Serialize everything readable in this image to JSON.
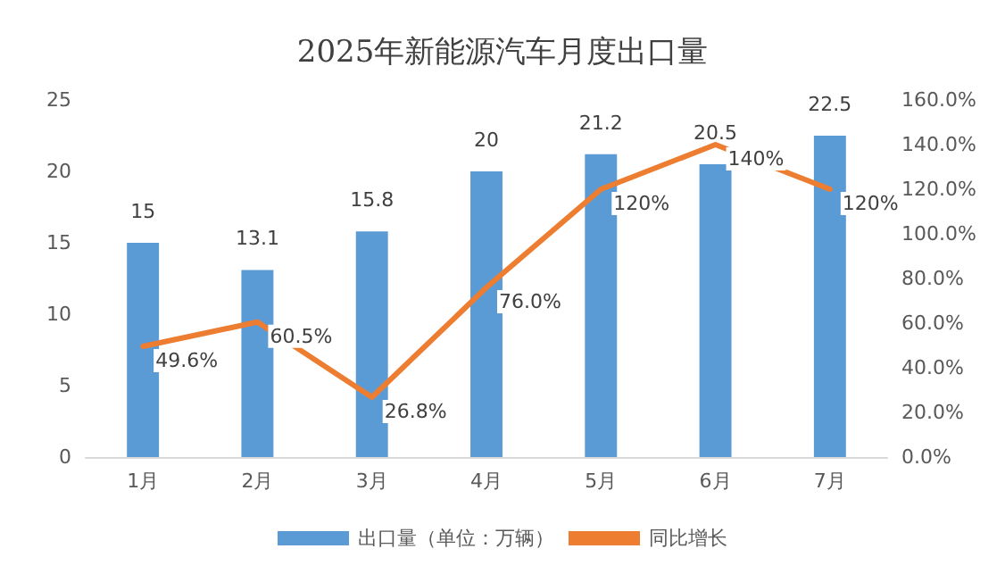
{
  "chart_data": {
    "type": "bar",
    "title": "2025年新能源汽车月度出口量",
    "categories": [
      "1月",
      "2月",
      "3月",
      "4月",
      "5月",
      "6月",
      "7月"
    ],
    "series": [
      {
        "name": "出口量（单位：万辆）",
        "color": "#5b9bd5",
        "values": [
          15,
          13.1,
          15.8,
          20,
          21.2,
          20.5,
          22.5
        ],
        "value_labels": [
          "15",
          "13.1",
          "15.8",
          "20",
          "21.2",
          "20.5",
          "22.5"
        ]
      },
      {
        "name": "同比增长",
        "type": "line",
        "axis": "y2",
        "color": "#ed7d31",
        "values": [
          49.6,
          60.5,
          26.8,
          76.0,
          120,
          140,
          120
        ],
        "value_labels": [
          "49.6%",
          "60.5%",
          "26.8%",
          "76.0%",
          "120%",
          "140%",
          "120%"
        ]
      }
    ],
    "ylim": [
      0,
      25
    ],
    "yticks": [
      0,
      5,
      10,
      15,
      20,
      25
    ],
    "y2lim": [
      0,
      160
    ],
    "y2ticks": [
      {
        "value": 0,
        "label": "0.0%"
      },
      {
        "value": 20,
        "label": "20.0%"
      },
      {
        "value": 40,
        "label": "40.0%"
      },
      {
        "value": 60,
        "label": "60.0%"
      },
      {
        "value": 80,
        "label": "80.0%"
      },
      {
        "value": 100,
        "label": "100.0%"
      },
      {
        "value": 120,
        "label": "120.0%"
      },
      {
        "value": 140,
        "label": "140.0%"
      },
      {
        "value": 160,
        "label": "160.0%"
      }
    ],
    "grid": false,
    "legend": "bottom",
    "marker": "none",
    "line_style": "solid"
  }
}
